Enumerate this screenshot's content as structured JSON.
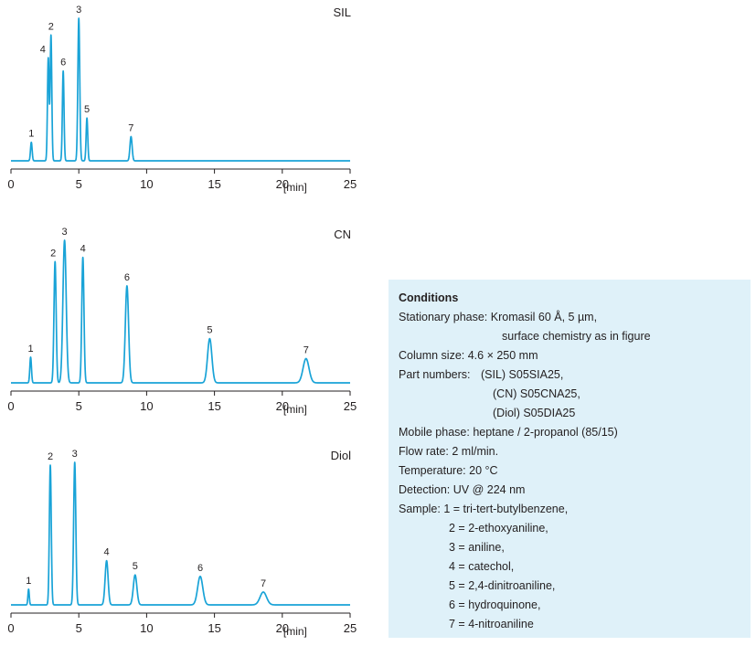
{
  "chart_data": [
    {
      "type": "line",
      "title": "SIL",
      "xlabel": "[min]",
      "xlim": [
        0,
        25
      ],
      "xticks": [
        0,
        5,
        10,
        15,
        20,
        25
      ],
      "peaks": [
        {
          "label": "1",
          "x": 1.5,
          "height": 0.13,
          "width": 0.06
        },
        {
          "label": "4",
          "x": 2.75,
          "height": 0.72,
          "width": 0.06
        },
        {
          "label": "2",
          "x": 2.95,
          "height": 0.88,
          "width": 0.06
        },
        {
          "label": "6",
          "x": 3.85,
          "height": 0.63,
          "width": 0.06
        },
        {
          "label": "3",
          "x": 5.0,
          "height": 1.0,
          "width": 0.07
        },
        {
          "label": "5",
          "x": 5.6,
          "height": 0.3,
          "width": 0.06
        },
        {
          "label": "7",
          "x": 8.85,
          "height": 0.17,
          "width": 0.08
        }
      ]
    },
    {
      "type": "line",
      "title": "CN",
      "xlabel": "[min]",
      "xlim": [
        0,
        25
      ],
      "xticks": [
        0,
        5,
        10,
        15,
        20,
        25
      ],
      "peaks": [
        {
          "label": "1",
          "x": 1.45,
          "height": 0.18,
          "width": 0.06
        },
        {
          "label": "2",
          "x": 3.25,
          "height": 0.85,
          "width": 0.08
        },
        {
          "label": "3",
          "x": 3.95,
          "height": 1.0,
          "width": 0.12
        },
        {
          "label": "4",
          "x": 5.3,
          "height": 0.88,
          "width": 0.08
        },
        {
          "label": "6",
          "x": 8.55,
          "height": 0.68,
          "width": 0.12
        },
        {
          "label": "5",
          "x": 14.65,
          "height": 0.31,
          "width": 0.16
        },
        {
          "label": "7",
          "x": 21.75,
          "height": 0.17,
          "width": 0.22
        }
      ]
    },
    {
      "type": "line",
      "title": "Diol",
      "xlabel": "[min]",
      "xlim": [
        0,
        25
      ],
      "xticks": [
        0,
        5,
        10,
        15,
        20,
        25
      ],
      "peaks": [
        {
          "label": "1",
          "x": 1.3,
          "height": 0.11,
          "width": 0.05
        },
        {
          "label": "2",
          "x": 2.9,
          "height": 0.98,
          "width": 0.07
        },
        {
          "label": "3",
          "x": 4.7,
          "height": 1.0,
          "width": 0.08
        },
        {
          "label": "4",
          "x": 7.05,
          "height": 0.31,
          "width": 0.11
        },
        {
          "label": "5",
          "x": 9.15,
          "height": 0.21,
          "width": 0.13
        },
        {
          "label": "6",
          "x": 13.95,
          "height": 0.2,
          "width": 0.19
        },
        {
          "label": "7",
          "x": 18.6,
          "height": 0.09,
          "width": 0.24
        }
      ]
    }
  ],
  "conditions": {
    "heading": "Conditions",
    "stationary_phase_label": "Stationary phase:",
    "stationary_phase_value": "Kromasil 60 Å, 5 µm,",
    "stationary_phase_cont": "surface chemistry as in figure",
    "column_size_label": "Column size:",
    "column_size_value": "4.6 × 250 mm",
    "part_numbers_label": "Part numbers:",
    "part_numbers": [
      "(SIL) S05SIA25,",
      "(CN) S05CNA25,",
      "(Diol) S05DIA25"
    ],
    "mobile_phase_label": "Mobile phase:",
    "mobile_phase_value": "heptane / 2-propanol (85/15)",
    "flow_rate_label": "Flow rate:",
    "flow_rate_value": "2 ml/min.",
    "temperature_label": "Temperature:",
    "temperature_value": "20 °C",
    "detection_label": "Detection:",
    "detection_value": "UV @ 224 nm",
    "sample_label": "Sample:",
    "samples": [
      "1 = tri-tert-butylbenzene,",
      "2 = 2-ethoxyaniline,",
      "3 = aniline,",
      "4 = catechol,",
      "5 = 2,4-dinitroaniline,",
      "6 = hydroquinone,",
      "7 = 4-nitroaniline"
    ]
  }
}
